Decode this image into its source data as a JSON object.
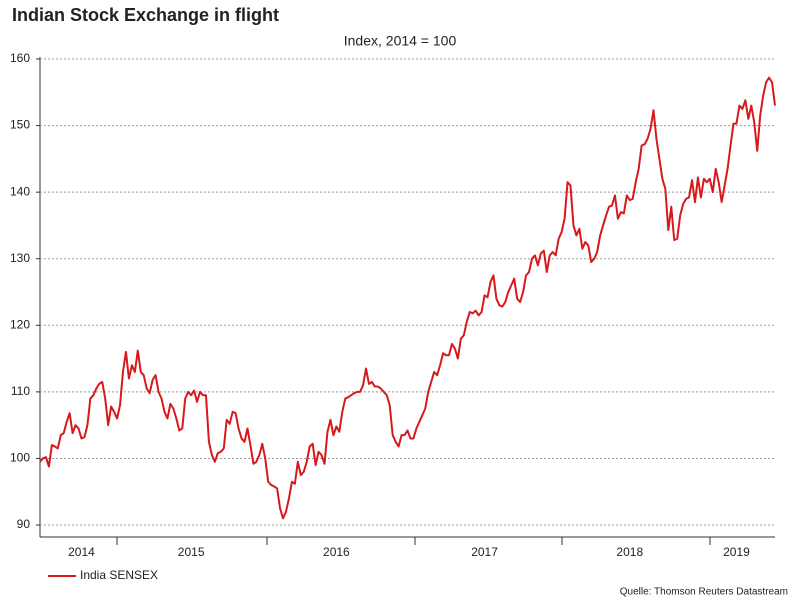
{
  "chart_data": {
    "type": "line",
    "title": "Indian Stock Exchange in flight",
    "subtitle": "Index, 2014 = 100",
    "source": "Quelle: Thomson Reuters Datastream",
    "ylim": [
      88.2,
      160.3
    ],
    "yticks": [
      90,
      100,
      110,
      120,
      130,
      140,
      150,
      160
    ],
    "grid": true,
    "categories": [
      null,
      null,
      null,
      null,
      null,
      null,
      null,
      null,
      null,
      null,
      null,
      null,
      null,
      null,
      "2014",
      null,
      null,
      null,
      null,
      null,
      null,
      null,
      null,
      null,
      null,
      null,
      null,
      null,
      null,
      null,
      null,
      null,
      null,
      null,
      null,
      null,
      null,
      null,
      null,
      null,
      null,
      null,
      null,
      null,
      null,
      null,
      null,
      null,
      null,
      null,
      null,
      "2015",
      null,
      null,
      null,
      null,
      null,
      null,
      null,
      null,
      null,
      null,
      null,
      null,
      null,
      null,
      null,
      null,
      null,
      null,
      null,
      null,
      null,
      null,
      null,
      null,
      null,
      null,
      null,
      null,
      null,
      null,
      null,
      null,
      null,
      null,
      null,
      null,
      null,
      null,
      null,
      null,
      null,
      null,
      null,
      null,
      null,
      null,
      null,
      null,
      "2016",
      null,
      null,
      null,
      null,
      null,
      null,
      null,
      null,
      null,
      null,
      null,
      null,
      null,
      null,
      null,
      null,
      null,
      null,
      null,
      null,
      null,
      null,
      null,
      null,
      null,
      null,
      null,
      null,
      null,
      null,
      null,
      null,
      null,
      null,
      null,
      null,
      null,
      null,
      null,
      null,
      null,
      null,
      null,
      null,
      null,
      null,
      null,
      null,
      null,
      "2017",
      null,
      null,
      null,
      null,
      null,
      null,
      null,
      null,
      null,
      null,
      null,
      null,
      null,
      null,
      null,
      null,
      null,
      null,
      null,
      null,
      null,
      null,
      null,
      null,
      null,
      null,
      null,
      null,
      null,
      null,
      null,
      null,
      null,
      null,
      null,
      null,
      null,
      null,
      null,
      null,
      null,
      null,
      null,
      null,
      null,
      null,
      null,
      null,
      "2018",
      null,
      null,
      null,
      null,
      null,
      null,
      null,
      null,
      null,
      null,
      null,
      null,
      null,
      null,
      null,
      null,
      null,
      null,
      null,
      null,
      null,
      null,
      null,
      null,
      null,
      null,
      null,
      null,
      null,
      null,
      null,
      null,
      null,
      null,
      null,
      "2019",
      null,
      null,
      null,
      null,
      null,
      null,
      null,
      null,
      null,
      null,
      null,
      null,
      null
    ],
    "series": [
      {
        "name": "India SENSEX",
        "color": "#d7191c",
        "values": [
          99.5,
          100,
          100.2,
          98.8,
          102,
          101.8,
          101.5,
          103.5,
          103.8,
          105.5,
          106.8,
          103.8,
          105,
          104.5,
          103,
          103.2,
          105,
          109,
          109.5,
          110.5,
          111.2,
          111.5,
          109,
          105,
          107.8,
          107,
          106,
          108,
          113,
          116,
          112,
          114,
          113,
          116.2,
          113,
          112.5,
          110.5,
          109.8,
          111.8,
          112.5,
          110,
          109,
          107,
          106,
          108.2,
          107.5,
          106,
          104.2,
          104.5,
          109,
          110,
          109.5,
          110.2,
          108.5,
          110,
          109.5,
          109.5,
          102.5,
          100.5,
          99.5,
          100.8,
          101,
          101.5,
          105.8,
          105.2,
          107,
          106.8,
          104.5,
          103,
          102.5,
          104.5,
          102,
          99.2,
          99.5,
          100.5,
          102.2,
          100,
          96.5,
          96,
          95.8,
          95.5,
          92.5,
          91,
          92,
          94,
          96.5,
          96.2,
          99.5,
          97.5,
          98,
          99.5,
          101.8,
          102.2,
          99,
          101,
          100.5,
          99.2,
          104,
          105.8,
          103.5,
          104.8,
          104,
          107,
          109,
          109.2,
          109.5,
          109.8,
          110,
          110,
          111,
          113.5,
          111.2,
          111.5,
          110.8,
          110.8,
          110.5,
          110,
          109.5,
          108,
          103.5,
          102.5,
          101.8,
          103.5,
          103.5,
          104.2,
          103,
          103,
          104.5,
          105.5,
          106.5,
          107.5,
          110,
          111.5,
          113,
          112.5,
          114,
          115.8,
          115.5,
          115.5,
          117.2,
          116.5,
          115,
          118,
          118.5,
          120.5,
          122,
          121.8,
          122.2,
          121.5,
          122,
          124.5,
          124.2,
          126.5,
          127.5,
          124,
          123,
          122.8,
          123.5,
          125,
          126,
          127,
          124,
          123.5,
          125,
          127.5,
          128,
          130,
          130.5,
          129,
          130.8,
          131.2,
          128,
          130.5,
          131,
          130.5,
          133,
          134,
          136,
          141.5,
          141,
          135,
          133.5,
          134.5,
          131.5,
          132.5,
          132,
          129.5,
          130,
          131,
          133.5,
          135,
          136.5,
          137.8,
          138,
          139.5,
          136,
          137,
          136.8,
          139.5,
          138.8,
          139,
          141.5,
          143.5,
          147,
          147.2,
          148,
          149.5,
          152.3,
          148,
          145,
          142,
          140.5,
          134.3,
          137.8,
          132.8,
          133,
          136.5,
          138.2,
          139,
          139.2,
          141.8,
          138.5,
          142.2,
          139.2,
          142,
          141.5,
          142,
          140,
          143.5,
          141.5,
          138.5,
          141,
          143.5,
          147,
          150.3,
          150.3,
          153,
          152.5,
          153.8,
          151,
          153,
          150.5,
          146.2,
          151.5,
          154.5,
          156.5,
          157.2,
          156.5,
          153
        ]
      }
    ]
  }
}
